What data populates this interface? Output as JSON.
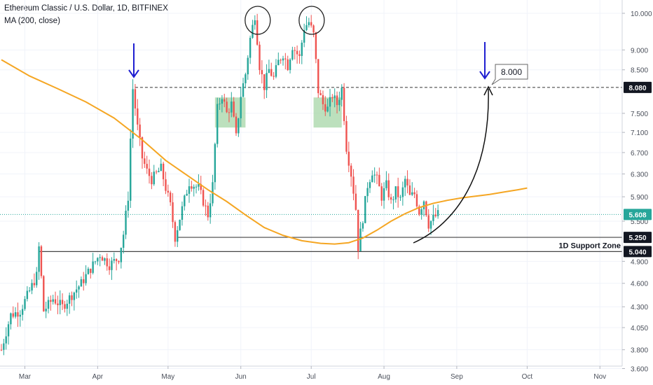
{
  "header": {
    "title": "Ethereum Classic / U.S. Dollar, 1D, BITFINEX",
    "indicator": "MA (200, close)"
  },
  "colors": {
    "up": "#26a69a",
    "down": "#ef5350",
    "ma": "#f5a623",
    "arrow": "#1f1fd1",
    "highlight_box": "#a5d6a7",
    "last_price": "#26a69a",
    "line_dark": "#131722"
  },
  "chart_data": {
    "type": "candlestick",
    "title": "Ethereum Classic / U.S. Dollar, 1D, BITFINEX",
    "ylim": [
      3.55,
      10.25
    ],
    "y_ticks": [
      "10.000",
      "9.000",
      "8.500",
      "7.500",
      "7.100",
      "6.700",
      "6.300",
      "5.900",
      "5.500",
      "4.900",
      "4.600",
      "4.300",
      "4.050",
      "3.800",
      "3.600"
    ],
    "x_ticks": [
      "Mar",
      "Apr",
      "May",
      "Jun",
      "Jul",
      "Aug",
      "Sep",
      "Oct",
      "Nov"
    ],
    "price_labels": [
      {
        "value": 8.08,
        "text": "8.080",
        "style": "dark"
      },
      {
        "value": 5.608,
        "text": "5.608",
        "style": "last"
      },
      {
        "value": 5.25,
        "text": "5.250",
        "style": "dark"
      },
      {
        "value": 5.04,
        "text": "5.040",
        "style": "dark"
      }
    ],
    "levels": [
      {
        "value": 8.08,
        "style": "dashed"
      },
      {
        "value": 5.25,
        "style": "solid"
      },
      {
        "value": 5.04,
        "style": "solid"
      }
    ],
    "support_zone_label": "1D Support Zone",
    "target_label": "8.000",
    "annotations": {
      "double_top": "two circles marking tops near 10.0",
      "arrows": "down arrows at Apr 6 and Aug 14 pointing to 8.080 level",
      "projection": "curved arrow from 5.04 to 8.08"
    },
    "ma_200": [
      [
        0,
        8.75
      ],
      [
        12,
        8.35
      ],
      [
        24,
        8.05
      ],
      [
        36,
        7.75
      ],
      [
        48,
        7.4
      ],
      [
        60,
        6.95
      ],
      [
        70,
        6.55
      ],
      [
        80,
        6.25
      ],
      [
        88,
        6.02
      ],
      [
        96,
        5.82
      ],
      [
        104,
        5.6
      ],
      [
        112,
        5.4
      ],
      [
        120,
        5.28
      ],
      [
        128,
        5.2
      ],
      [
        136,
        5.16
      ],
      [
        142,
        5.15
      ],
      [
        148,
        5.17
      ],
      [
        154,
        5.24
      ],
      [
        160,
        5.36
      ],
      [
        166,
        5.5
      ],
      [
        172,
        5.62
      ],
      [
        178,
        5.72
      ],
      [
        184,
        5.79
      ],
      [
        190,
        5.84
      ],
      [
        196,
        5.88
      ],
      [
        202,
        5.91
      ],
      [
        208,
        5.94
      ],
      [
        214,
        5.98
      ],
      [
        220,
        6.02
      ],
      [
        224,
        6.05
      ]
    ],
    "series_description": "Daily ETC/USD candles Feb 19 to Aug 21: rise from ~3.9 to 5.0 in March, spike to ~8.1 in early April, pullback to ~5.25 late April, rally to ~10 in June (double top), sharp drop to ~5.04 in mid-July, consolidation 5.4-6.3, last 5.608."
  }
}
